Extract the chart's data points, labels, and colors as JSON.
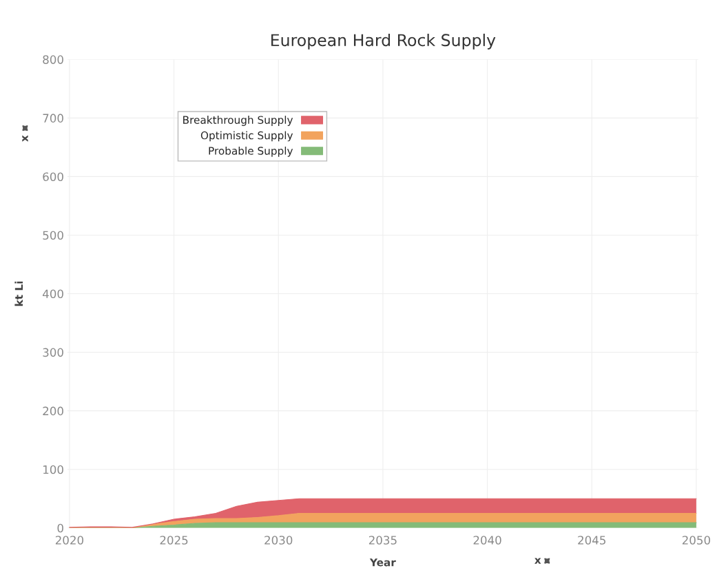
{
  "chart_data": {
    "type": "area",
    "stacked": true,
    "title": "European Hard Rock Supply",
    "xlabel": "Year",
    "ylabel": "kt Li",
    "x": [
      2020,
      2021,
      2022,
      2023,
      2024,
      2025,
      2026,
      2027,
      2028,
      2029,
      2030,
      2031,
      2032,
      2033,
      2034,
      2035,
      2036,
      2037,
      2038,
      2039,
      2040,
      2041,
      2042,
      2043,
      2044,
      2045,
      2046,
      2047,
      2048,
      2049,
      2050
    ],
    "series": [
      {
        "name": "Probable Supply",
        "color": "#84bb78",
        "values": [
          0,
          0,
          0,
          0,
          3,
          5,
          8,
          9,
          9,
          9,
          9,
          9,
          9,
          9,
          9,
          9,
          9,
          9,
          9,
          9,
          9,
          9,
          9,
          9,
          9,
          9,
          9,
          9,
          9,
          9,
          9
        ]
      },
      {
        "name": "Optimistic Supply",
        "color": "#f2a35e",
        "values": [
          0,
          0,
          0,
          0,
          3,
          6,
          7,
          7,
          7,
          9,
          12,
          16,
          16,
          16,
          16,
          16,
          16,
          16,
          16,
          16,
          16,
          16,
          16,
          16,
          16,
          16,
          16,
          16,
          16,
          16,
          16
        ]
      },
      {
        "name": "Breakthrough Supply",
        "color": "#e0636b",
        "values": [
          1,
          2,
          2,
          1,
          1,
          4,
          4,
          9,
          21,
          26,
          26,
          25,
          25,
          25,
          25,
          25,
          25,
          25,
          25,
          25,
          25,
          25,
          25,
          25,
          25,
          25,
          25,
          25,
          25,
          25,
          25
        ]
      }
    ],
    "xlim": [
      2019.9,
      2050.1
    ],
    "xticks": [
      2020,
      2025,
      2030,
      2035,
      2040,
      2045,
      2050
    ],
    "ylim": [
      0,
      800
    ],
    "yticks": [
      0,
      100,
      200,
      300,
      400,
      500,
      600,
      700,
      800
    ],
    "grid": true,
    "legend": "top left",
    "annotations": [
      "x",
      "x"
    ]
  }
}
